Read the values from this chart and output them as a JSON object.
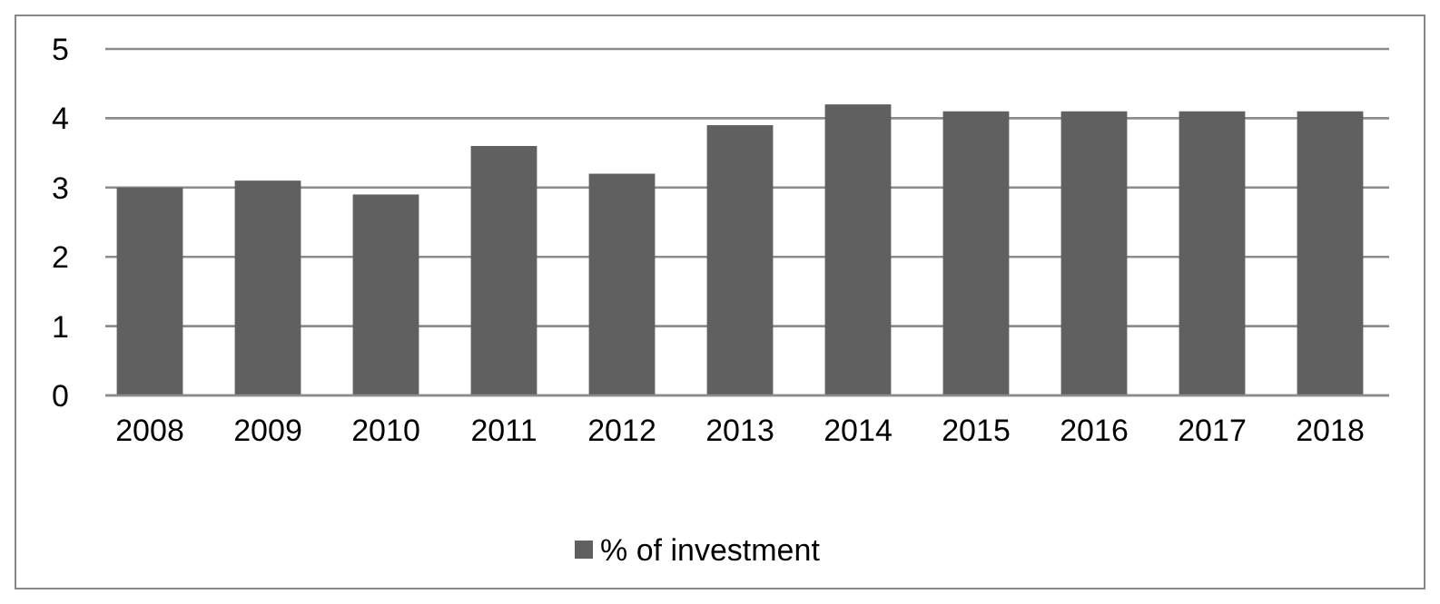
{
  "chart_data": {
    "type": "bar",
    "categories": [
      "2008",
      "2009",
      "2010",
      "2011",
      "2012",
      "2013",
      "2014",
      "2015",
      "2016",
      "2017",
      "2018"
    ],
    "series": [
      {
        "name": "% of investment",
        "color": "#606060",
        "values": [
          3.0,
          3.1,
          2.9,
          3.6,
          3.2,
          3.9,
          4.2,
          4.1,
          4.1,
          4.1,
          4.1
        ]
      }
    ],
    "ylim": [
      0,
      5
    ],
    "yticks": [
      0,
      1,
      2,
      3,
      4,
      5
    ],
    "grid": "y",
    "legend": "bottom"
  }
}
